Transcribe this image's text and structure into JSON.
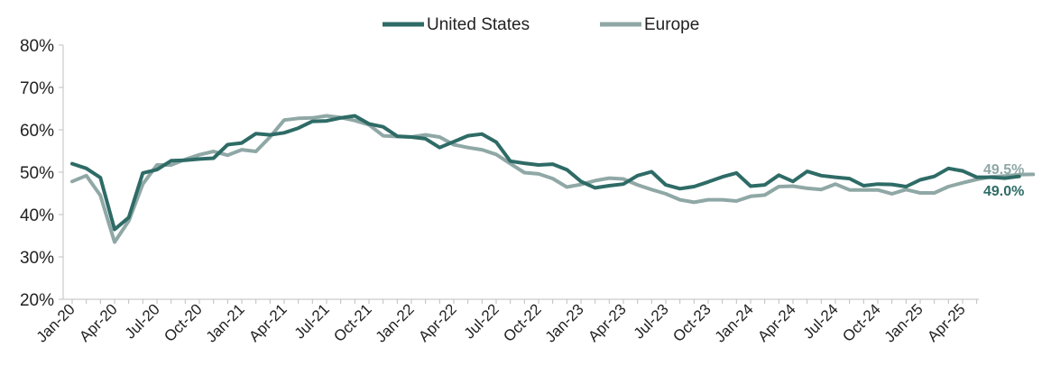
{
  "chart_data": {
    "type": "line",
    "title": "",
    "xlabel": "",
    "ylabel": "",
    "ylim": [
      0.2,
      0.8
    ],
    "yticks": [
      "20%",
      "30%",
      "40%",
      "50%",
      "60%",
      "70%",
      "80%"
    ],
    "ytick_values": [
      0.2,
      0.3,
      0.4,
      0.5,
      0.6,
      0.7,
      0.8
    ],
    "x_tick_labels": [
      "Jan-20",
      "Apr-20",
      "Jul-20",
      "Oct-20",
      "Jan-21",
      "Apr-21",
      "Jul-21",
      "Oct-21",
      "Jan-22",
      "Apr-22",
      "Jul-22",
      "Oct-22",
      "Jan-23",
      "Apr-23",
      "Jul-23",
      "Oct-23",
      "Jan-24",
      "Apr-24",
      "Jul-24",
      "Oct-24",
      "Jan-25",
      "Apr-25"
    ],
    "legend_position": "top-center",
    "grid": false,
    "series": [
      {
        "name": "United States",
        "color": "#2e6b66",
        "end_label": "49.0%",
        "values": [
          0.52,
          0.509,
          0.487,
          0.365,
          0.393,
          0.498,
          0.506,
          0.527,
          0.528,
          0.531,
          0.533,
          0.565,
          0.569,
          0.591,
          0.588,
          0.593,
          0.604,
          0.62,
          0.621,
          0.628,
          0.633,
          0.614,
          0.607,
          0.585,
          0.583,
          0.579,
          0.558,
          0.572,
          0.586,
          0.59,
          0.571,
          0.526,
          0.521,
          0.517,
          0.519,
          0.506,
          0.478,
          0.463,
          0.468,
          0.472,
          0.492,
          0.501,
          0.47,
          0.461,
          0.466,
          0.477,
          0.489,
          0.498,
          0.467,
          0.47,
          0.493,
          0.478,
          0.502,
          0.492,
          0.488,
          0.485,
          0.468,
          0.472,
          0.471,
          0.466,
          0.482,
          0.49,
          0.509,
          0.503,
          0.488,
          0.488,
          0.486,
          0.49
        ]
      },
      {
        "name": "Europe",
        "color": "#8fa8a6",
        "end_label": "49.5%",
        "values": [
          0.478,
          0.492,
          0.445,
          0.335,
          0.385,
          0.472,
          0.517,
          0.517,
          0.53,
          0.541,
          0.549,
          0.54,
          0.553,
          0.549,
          0.583,
          0.623,
          0.627,
          0.628,
          0.633,
          0.629,
          0.622,
          0.612,
          0.586,
          0.584,
          0.583,
          0.588,
          0.583,
          0.565,
          0.558,
          0.553,
          0.542,
          0.52,
          0.499,
          0.496,
          0.485,
          0.465,
          0.471,
          0.48,
          0.486,
          0.484,
          0.47,
          0.459,
          0.449,
          0.435,
          0.429,
          0.435,
          0.435,
          0.432,
          0.443,
          0.446,
          0.466,
          0.467,
          0.462,
          0.459,
          0.472,
          0.458,
          0.458,
          0.458,
          0.449,
          0.459,
          0.451,
          0.451,
          0.466,
          0.475,
          0.483,
          0.489,
          0.491,
          0.494,
          0.495
        ]
      }
    ]
  }
}
